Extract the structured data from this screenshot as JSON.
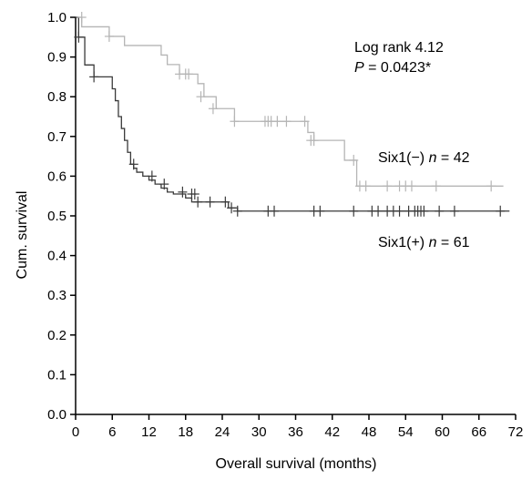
{
  "chart_data": {
    "type": "line",
    "subtype": "kaplan-meier-step",
    "title": "",
    "xlabel": "Overall survival (months)",
    "ylabel": "Cum. survival",
    "xlim": [
      0,
      72
    ],
    "ylim": [
      0.0,
      1.0
    ],
    "x_ticks": [
      "0",
      "6",
      "12",
      "18",
      "24",
      "30",
      "36",
      "42",
      "48",
      "54",
      "60",
      "66",
      "72"
    ],
    "y_ticks": [
      "0.0",
      "0.1",
      "0.2",
      "0.3",
      "0.4",
      "0.5",
      "0.6",
      "0.7",
      "0.8",
      "0.9",
      "1.0"
    ],
    "grid": false,
    "colors": {
      "six1_negative": "#b5b5b5",
      "six1_positive": "#3a3a3a",
      "axis": "#000000"
    },
    "annotations": {
      "log_rank": "Log rank 4.12",
      "p_label": "P",
      "p_value": " = 0.0423*",
      "six1_neg_name": "Six1(−) ",
      "six1_neg_n_label": "n",
      "six1_neg_n_value": " = 42",
      "six1_pos_name": "Six1(+) ",
      "six1_pos_n_label": "n",
      "six1_pos_n_value": " = 61"
    },
    "series": [
      {
        "key": "six1_negative",
        "step_x": [
          0,
          1,
          1,
          5.5,
          5.5,
          8,
          8,
          14,
          14,
          15,
          15,
          17,
          17,
          20,
          20,
          21,
          21,
          23,
          23,
          26,
          26,
          38,
          38,
          39,
          39,
          44,
          44,
          46,
          46,
          70
        ],
        "step_y": [
          1.0,
          1.0,
          0.976,
          0.976,
          0.952,
          0.952,
          0.929,
          0.929,
          0.905,
          0.905,
          0.881,
          0.881,
          0.857,
          0.857,
          0.833,
          0.833,
          0.8,
          0.8,
          0.77,
          0.77,
          0.738,
          0.738,
          0.71,
          0.71,
          0.69,
          0.69,
          0.64,
          0.64,
          0.575,
          0.575
        ],
        "censor_x": [
          1,
          5.5,
          17,
          18,
          18.5,
          20.5,
          22.5,
          26,
          31,
          31.5,
          32,
          33,
          34.5,
          37.5,
          38.5,
          39,
          45.5,
          46.5,
          47.5,
          51,
          53,
          54,
          55,
          59,
          68
        ],
        "censor_y": [
          1.0,
          0.952,
          0.857,
          0.857,
          0.857,
          0.8,
          0.77,
          0.738,
          0.738,
          0.738,
          0.738,
          0.738,
          0.738,
          0.738,
          0.69,
          0.69,
          0.64,
          0.575,
          0.575,
          0.575,
          0.575,
          0.575,
          0.575,
          0.575,
          0.575
        ]
      },
      {
        "key": "six1_positive",
        "step_x": [
          0,
          0.5,
          0.5,
          1.5,
          1.5,
          3,
          3,
          6,
          6,
          6.5,
          6.5,
          7,
          7,
          7.5,
          7.5,
          8,
          8,
          8.5,
          8.5,
          9,
          9,
          9.5,
          9.5,
          10,
          10,
          11,
          11,
          12,
          12,
          13,
          13,
          14,
          14,
          15,
          15,
          16,
          16,
          18,
          18,
          19,
          19,
          20,
          20,
          25,
          25,
          26.5,
          26.5,
          71
        ],
        "step_y": [
          1.0,
          1.0,
          0.95,
          0.95,
          0.88,
          0.88,
          0.85,
          0.85,
          0.82,
          0.82,
          0.79,
          0.79,
          0.75,
          0.75,
          0.72,
          0.72,
          0.69,
          0.69,
          0.66,
          0.66,
          0.63,
          0.63,
          0.62,
          0.62,
          0.61,
          0.61,
          0.6,
          0.6,
          0.59,
          0.59,
          0.58,
          0.58,
          0.57,
          0.57,
          0.56,
          0.56,
          0.555,
          0.555,
          0.545,
          0.545,
          0.535,
          0.535,
          0.535,
          0.535,
          0.52,
          0.52,
          0.512,
          0.512
        ],
        "censor_x": [
          0.5,
          3,
          9.5,
          12.5,
          14.5,
          17.5,
          19,
          19.5,
          20,
          22,
          24.5,
          25.5,
          26.5,
          31.5,
          32.5,
          39,
          40,
          45.5,
          48.5,
          49.5,
          51,
          52,
          53,
          54.5,
          55.5,
          56,
          56.5,
          57,
          59.5,
          62,
          69.5
        ],
        "censor_y": [
          0.95,
          0.85,
          0.63,
          0.6,
          0.58,
          0.56,
          0.555,
          0.555,
          0.535,
          0.535,
          0.535,
          0.52,
          0.512,
          0.512,
          0.512,
          0.512,
          0.512,
          0.512,
          0.512,
          0.512,
          0.512,
          0.512,
          0.512,
          0.512,
          0.512,
          0.512,
          0.512,
          0.512,
          0.512,
          0.512,
          0.512
        ]
      }
    ]
  }
}
